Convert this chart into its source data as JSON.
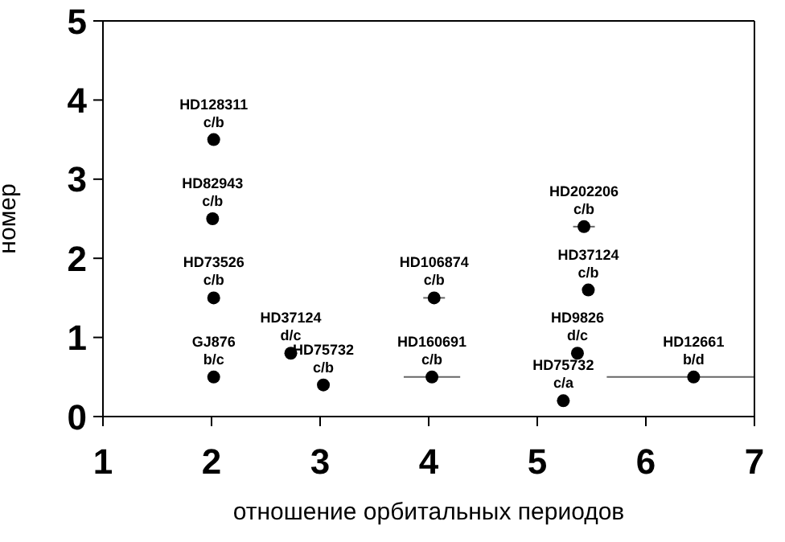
{
  "chart_data": {
    "type": "scatter",
    "xlabel": "отношение орбитальных периодов",
    "ylabel": "номер",
    "x": [
      2.02,
      2.01,
      2.02,
      2.02,
      2.73,
      3.03,
      4.05,
      4.03,
      5.43,
      5.47,
      5.37,
      5.24,
      6.44
    ],
    "values": [
      3.5,
      2.5,
      1.5,
      0.5,
      0.8,
      0.4,
      1.5,
      0.5,
      2.4,
      1.6,
      0.8,
      0.2,
      0.5
    ],
    "xerrors": [
      null,
      null,
      null,
      null,
      null,
      null,
      0.1,
      0.26,
      0.1,
      null,
      null,
      null,
      [
        5.64,
        7
      ]
    ],
    "color": "#000000",
    "marker": "circle",
    "xlim": [
      1,
      7
    ],
    "xticks": [
      1,
      2,
      3,
      4,
      5,
      6,
      7
    ],
    "ylim": [
      0,
      5
    ],
    "yticks": [
      0,
      1,
      2,
      3,
      4,
      5
    ],
    "legend": false,
    "annotations": [
      {
        "text": "HD128311 c/b",
        "x": 2.02,
        "y": 3.5
      },
      {
        "text": "HD82943 c/b",
        "x": 2.01,
        "y": 2.5
      },
      {
        "text": "HD73526 c/b",
        "x": 2.02,
        "y": 1.5
      },
      {
        "text": "GJ876 b/c",
        "x": 2.02,
        "y": 0.5
      },
      {
        "text": "HD37124 d/c",
        "x": 2.73,
        "y": 0.8
      },
      {
        "text": "HD75732 c/b",
        "x": 3.03,
        "y": 0.4
      },
      {
        "text": "HD106874 c/b",
        "x": 4.05,
        "y": 1.5
      },
      {
        "text": "HD160691 c/b",
        "x": 4.03,
        "y": 0.5
      },
      {
        "text": "HD202206 c/b",
        "x": 5.43,
        "y": 2.4
      },
      {
        "text": "HD37124 c/b",
        "x": 5.47,
        "y": 1.6
      },
      {
        "text": "HD9826 d/c",
        "x": 5.37,
        "y": 0.8
      },
      {
        "text": "HD75732 c/a",
        "x": 5.24,
        "y": 0.2
      },
      {
        "text": "HD12661 b/d",
        "x": 6.44,
        "y": 0.5
      }
    ]
  }
}
